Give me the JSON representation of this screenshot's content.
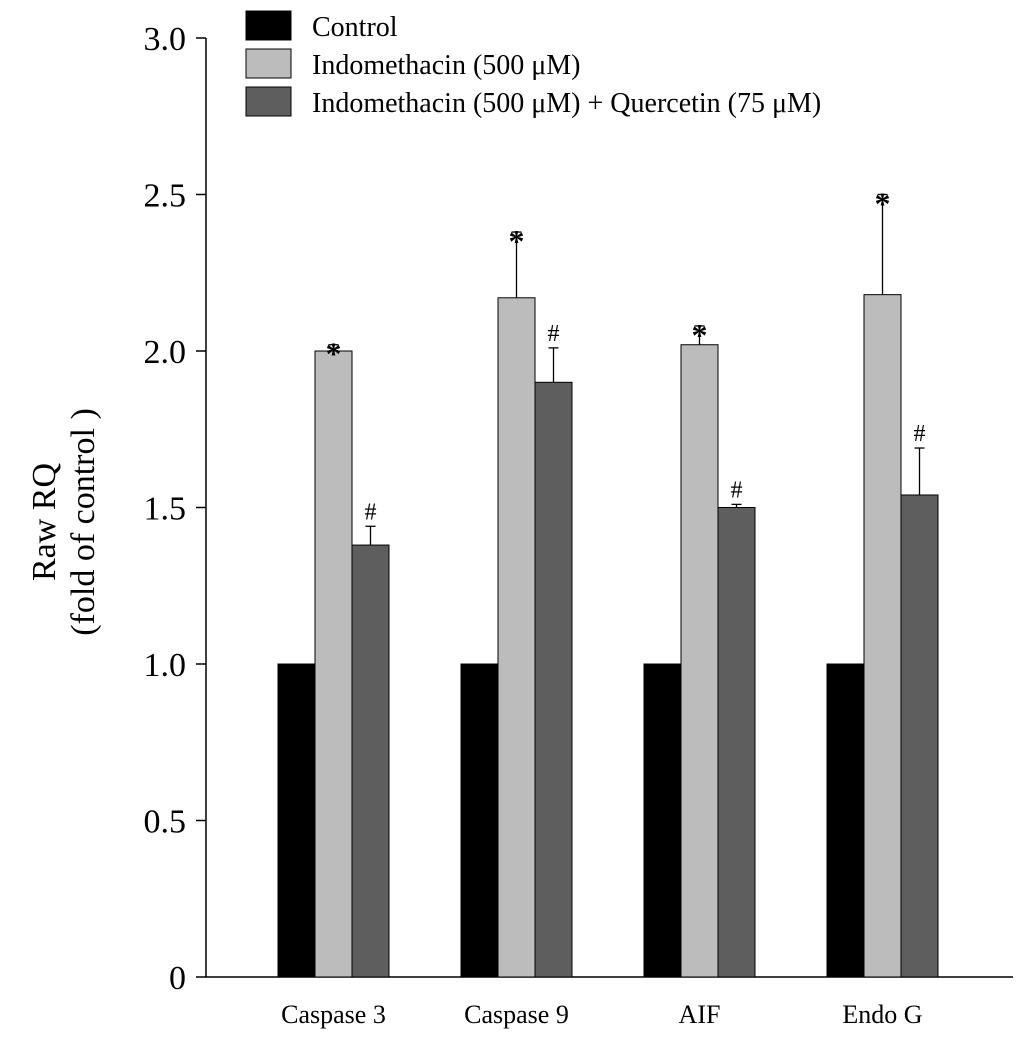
{
  "chart_data": {
    "type": "bar",
    "title": "",
    "xlabel": "",
    "ylabel_line1": "Raw RQ",
    "ylabel_line2": "(fold of control )",
    "ylim": [
      0,
      3.0
    ],
    "yticks": [
      {
        "value": 0,
        "label": "0"
      },
      {
        "value": 0.5,
        "label": "0.5"
      },
      {
        "value": 1.0,
        "label": "1.0"
      },
      {
        "value": 1.5,
        "label": "1.5"
      },
      {
        "value": 2.0,
        "label": "2.0"
      },
      {
        "value": 2.5,
        "label": "2.5"
      },
      {
        "value": 3.0,
        "label": "3.0"
      }
    ],
    "categories": [
      "Caspase 3",
      "Caspase 9",
      "AIF",
      "Endo G"
    ],
    "series": [
      {
        "name": "Control",
        "color": "#000000",
        "values": [
          1.0,
          1.0,
          1.0,
          1.0
        ],
        "errors": [
          0,
          0,
          0,
          0
        ],
        "marks": [
          "",
          "",
          "",
          ""
        ]
      },
      {
        "name": "Indomethacin (500 μM)",
        "color": "#bcbcbc",
        "values": [
          2.0,
          2.17,
          2.02,
          2.18
        ],
        "errors": [
          0.02,
          0.21,
          0.06,
          0.32
        ],
        "marks": [
          "*",
          "*",
          "*",
          "*"
        ]
      },
      {
        "name": "Indomethacin (500 μM) + Quercetin (75 μM)",
        "color": "#5e5e5e",
        "values": [
          1.38,
          1.9,
          1.5,
          1.54
        ],
        "errors": [
          0.06,
          0.11,
          0.01,
          0.15
        ],
        "marks": [
          "#",
          "#",
          "#",
          "#"
        ]
      }
    ],
    "legend_position": "top"
  }
}
